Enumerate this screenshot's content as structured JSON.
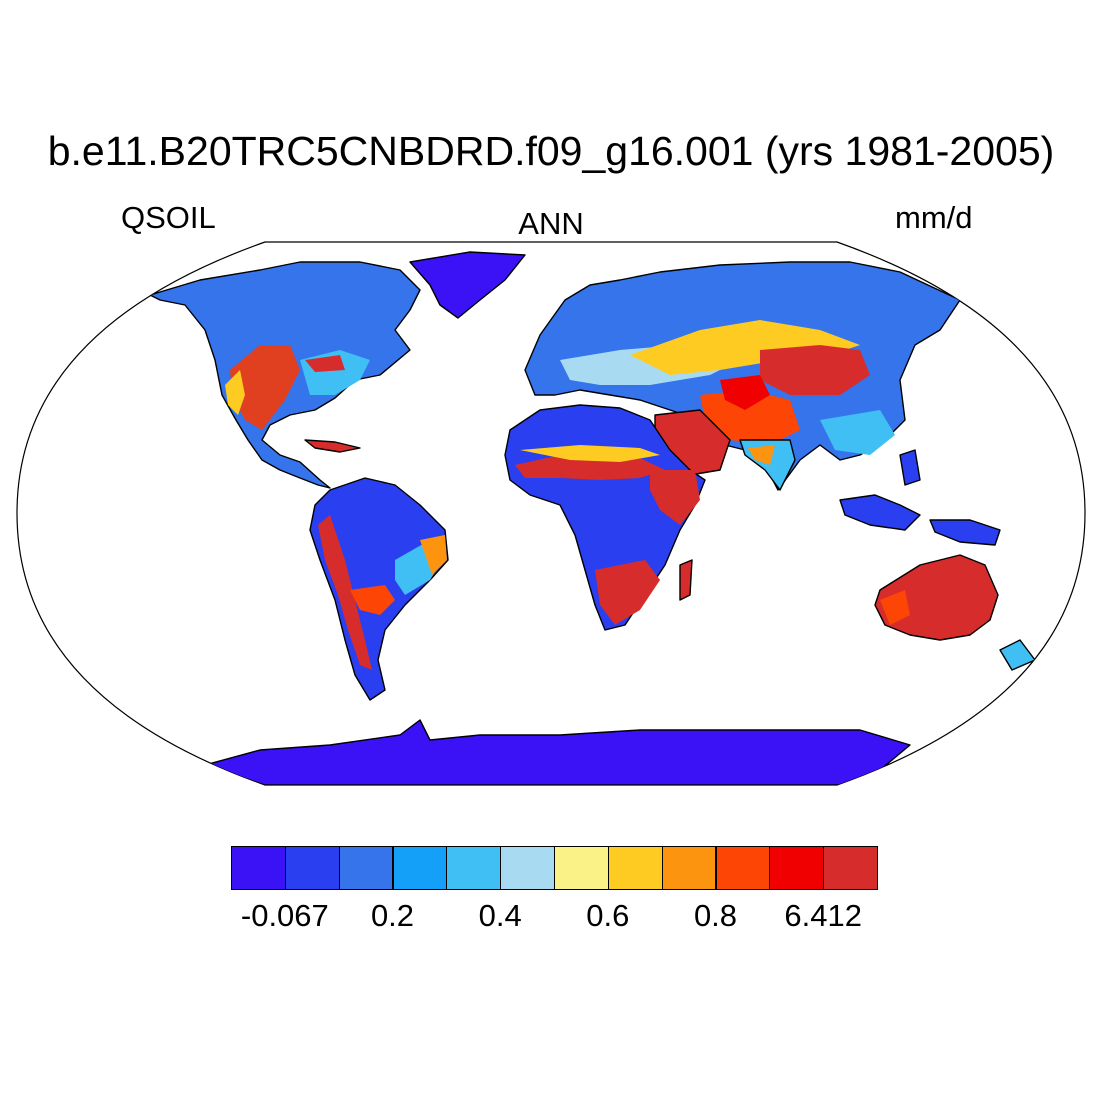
{
  "title": "b.e11.B20TRC5CNBDRD.f09_g16.001 (yrs 1981-2005)",
  "variable": "QSOIL",
  "season": "ANN",
  "units": "mm/d",
  "colorbar": {
    "colors": [
      "#3b12f5",
      "#2a3ff0",
      "#3574ea",
      "#14a0f8",
      "#40bff5",
      "#a8daf2",
      "#fbf287",
      "#fdcb21",
      "#fd9410",
      "#fd4505",
      "#f00000",
      "#d72c2c"
    ],
    "labels": [
      {
        "text": "-0.067",
        "boundary": 1
      },
      {
        "text": "0.2",
        "boundary": 3
      },
      {
        "text": "0.4",
        "boundary": 5
      },
      {
        "text": "0.6",
        "boundary": 7
      },
      {
        "text": "0.8",
        "boundary": 9
      },
      {
        "text": "6.412",
        "boundary": 11
      }
    ]
  }
}
